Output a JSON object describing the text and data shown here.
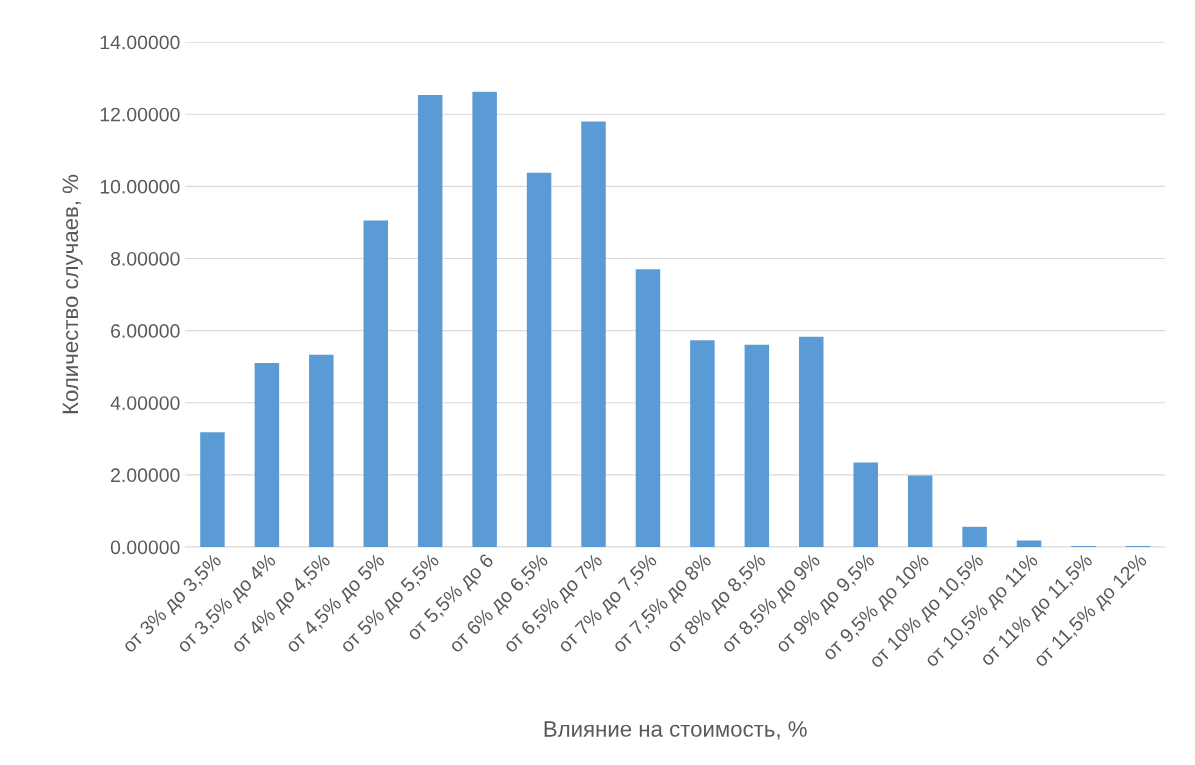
{
  "chart_data": {
    "type": "bar",
    "categories": [
      "от 3% до 3,5%",
      "от 3,5% до 4%",
      "от 4% до 4,5%",
      "от 4,5% до 5%",
      "от 5% до 5,5%",
      "от 5,5% до 6",
      "от 6% до 6,5%",
      "от 6,5% до 7%",
      "от 7% до 7,5%",
      "от 7,5% до 8%",
      "от 8% до 8,5%",
      "от 8,5% до 9%",
      "от 9% до 9,5%",
      "от 9,5% до 10%",
      "от 10% до 10,5%",
      "от 10,5% до 11%",
      "от 11% до 11,5%",
      "от 11,5% до 12%"
    ],
    "values": [
      3.18,
      5.1,
      5.33,
      9.05,
      12.53,
      12.62,
      10.38,
      11.8,
      7.7,
      5.73,
      5.61,
      5.83,
      2.34,
      1.98,
      0.56,
      0.18,
      0.03,
      0.03
    ],
    "color": "#5b9bd5",
    "xlabel": "Влияние на стоимость, %",
    "ylabel": "Количество случаев, %",
    "ylim": [
      0,
      14
    ],
    "yticks": [
      {
        "value": 0,
        "label": "0.00000"
      },
      {
        "value": 2,
        "label": "2.00000"
      },
      {
        "value": 4,
        "label": "4.00000"
      },
      {
        "value": 6,
        "label": "6.00000"
      },
      {
        "value": 8,
        "label": "8.00000"
      },
      {
        "value": 10,
        "label": "10.00000"
      },
      {
        "value": 12,
        "label": "12.00000"
      },
      {
        "value": 14,
        "label": "14.00000"
      }
    ],
    "grid": "y"
  }
}
